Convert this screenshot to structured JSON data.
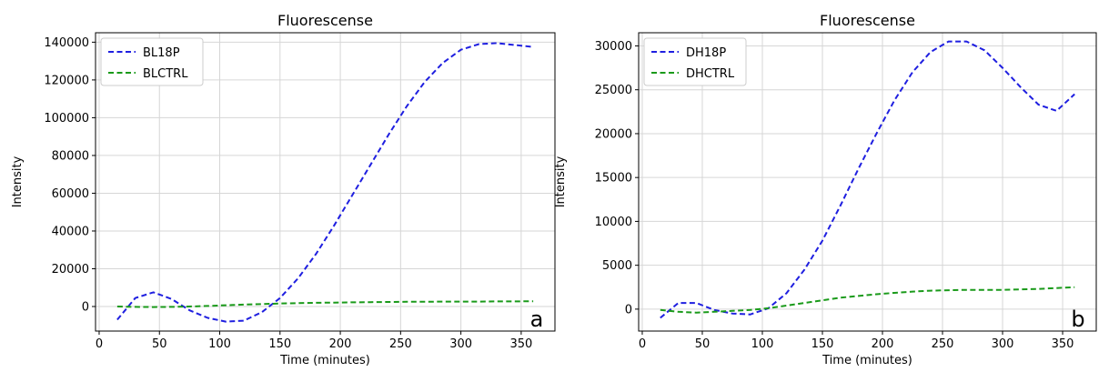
{
  "chart_data": [
    {
      "type": "line",
      "title": "Fluorescense",
      "xlabel": "Time (minutes)",
      "ylabel": "Intensity",
      "xlim": [
        -3,
        378
      ],
      "ylim": [
        -13000,
        145000
      ],
      "xticks": [
        0,
        50,
        100,
        150,
        200,
        250,
        300,
        350
      ],
      "xtick_labels": [
        "0",
        "50",
        "100",
        "150",
        "200",
        "250",
        "300",
        "350"
      ],
      "yticks": [
        0,
        20000,
        40000,
        60000,
        80000,
        100000,
        120000,
        140000
      ],
      "ytick_labels": [
        "0",
        "20000",
        "40000",
        "60000",
        "80000",
        "100000",
        "120000",
        "140000"
      ],
      "grid": true,
      "legend_position": "top-left",
      "panel_label": "a",
      "x": [
        15,
        30,
        45,
        60,
        75,
        90,
        105,
        120,
        135,
        150,
        165,
        180,
        195,
        210,
        225,
        240,
        255,
        270,
        285,
        300,
        315,
        330,
        345,
        360
      ],
      "series": [
        {
          "name": "BL18P",
          "color": "#1f1fe0",
          "style": "dashed",
          "values": [
            -7000,
            4500,
            7500,
            4000,
            -2000,
            -6000,
            -8000,
            -7500,
            -3000,
            4500,
            15000,
            28000,
            43000,
            59000,
            75000,
            91000,
            106000,
            119000,
            129000,
            136000,
            139000,
            139500,
            138500,
            137500
          ]
        },
        {
          "name": "BLCTRL",
          "color": "#1a9a1a",
          "style": "dashed",
          "values": [
            0,
            -200,
            -300,
            -200,
            0,
            300,
            700,
            1000,
            1300,
            1600,
            1800,
            2000,
            2100,
            2200,
            2300,
            2400,
            2500,
            2500,
            2600,
            2600,
            2600,
            2700,
            2700,
            2800
          ]
        }
      ]
    },
    {
      "type": "line",
      "title": "Fluorescense",
      "xlabel": "Time (minutes)",
      "ylabel": "Intensity",
      "xlim": [
        -3,
        378
      ],
      "ylim": [
        -2500,
        31500
      ],
      "xticks": [
        0,
        50,
        100,
        150,
        200,
        250,
        300,
        350
      ],
      "xtick_labels": [
        "0",
        "50",
        "100",
        "150",
        "200",
        "250",
        "300",
        "350"
      ],
      "yticks": [
        0,
        5000,
        10000,
        15000,
        20000,
        25000,
        30000
      ],
      "ytick_labels": [
        "0",
        "5000",
        "10000",
        "15000",
        "20000",
        "25000",
        "30000"
      ],
      "grid": true,
      "legend_position": "top-left",
      "panel_label": "b",
      "x": [
        15,
        30,
        45,
        60,
        75,
        90,
        105,
        120,
        135,
        150,
        165,
        180,
        195,
        210,
        225,
        240,
        255,
        270,
        285,
        300,
        315,
        330,
        345,
        360
      ],
      "series": [
        {
          "name": "DH18P",
          "color": "#1f1fe0",
          "style": "dashed",
          "values": [
            -1000,
            700,
            700,
            -100,
            -500,
            -600,
            100,
            1800,
            4500,
            7800,
            11800,
            16000,
            20000,
            23800,
            27000,
            29300,
            30500,
            30500,
            29500,
            27500,
            25300,
            23300,
            22600,
            24500
          ]
        },
        {
          "name": "DHCTRL",
          "color": "#1a9a1a",
          "style": "dashed",
          "values": [
            -100,
            -300,
            -400,
            -300,
            -200,
            -100,
            100,
            400,
            700,
            1000,
            1300,
            1500,
            1700,
            1850,
            2000,
            2100,
            2150,
            2200,
            2200,
            2200,
            2250,
            2300,
            2400,
            2500
          ]
        }
      ]
    }
  ]
}
